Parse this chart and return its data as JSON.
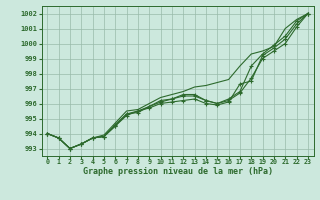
{
  "xlabel": "Graphe pression niveau de la mer (hPa)",
  "xlim": [
    -0.5,
    23.5
  ],
  "ylim": [
    992.5,
    1002.5
  ],
  "yticks": [
    993,
    994,
    995,
    996,
    997,
    998,
    999,
    1000,
    1001,
    1002
  ],
  "xticks": [
    0,
    1,
    2,
    3,
    4,
    5,
    6,
    7,
    8,
    9,
    10,
    11,
    12,
    13,
    14,
    15,
    16,
    17,
    18,
    19,
    20,
    21,
    22,
    23
  ],
  "bg_color": "#cce8dd",
  "line_color": "#2d6a2d",
  "grid_color": "#99bbaa",
  "series_with_markers": [
    [
      994.0,
      993.7,
      993.0,
      993.3,
      993.7,
      993.8,
      994.5,
      995.3,
      995.5,
      995.8,
      996.2,
      996.3,
      996.5,
      996.5,
      996.2,
      996.0,
      996.2,
      996.7,
      997.7,
      999.0,
      999.5,
      1000.0,
      1001.1,
      1002.0
    ],
    [
      994.0,
      993.7,
      993.0,
      993.3,
      993.7,
      993.8,
      994.5,
      995.2,
      995.5,
      995.7,
      996.0,
      996.1,
      996.2,
      996.3,
      996.0,
      995.9,
      996.1,
      997.3,
      997.5,
      999.2,
      999.7,
      1000.3,
      1001.3,
      1002.0
    ],
    [
      994.0,
      993.7,
      993.0,
      993.3,
      993.7,
      993.8,
      994.6,
      995.3,
      995.4,
      995.8,
      996.1,
      996.3,
      996.6,
      996.6,
      996.2,
      996.0,
      996.3,
      996.8,
      998.5,
      999.3,
      999.9,
      1000.5,
      1001.5,
      1002.0
    ]
  ],
  "series_straight": [
    [
      994.0,
      993.7,
      993.0,
      993.3,
      993.7,
      993.9,
      994.7,
      995.5,
      995.6,
      996.0,
      996.4,
      996.6,
      996.8,
      997.1,
      997.2,
      997.4,
      997.6,
      998.5,
      999.3,
      999.5,
      999.8,
      1001.0,
      1001.6,
      1002.0
    ]
  ]
}
